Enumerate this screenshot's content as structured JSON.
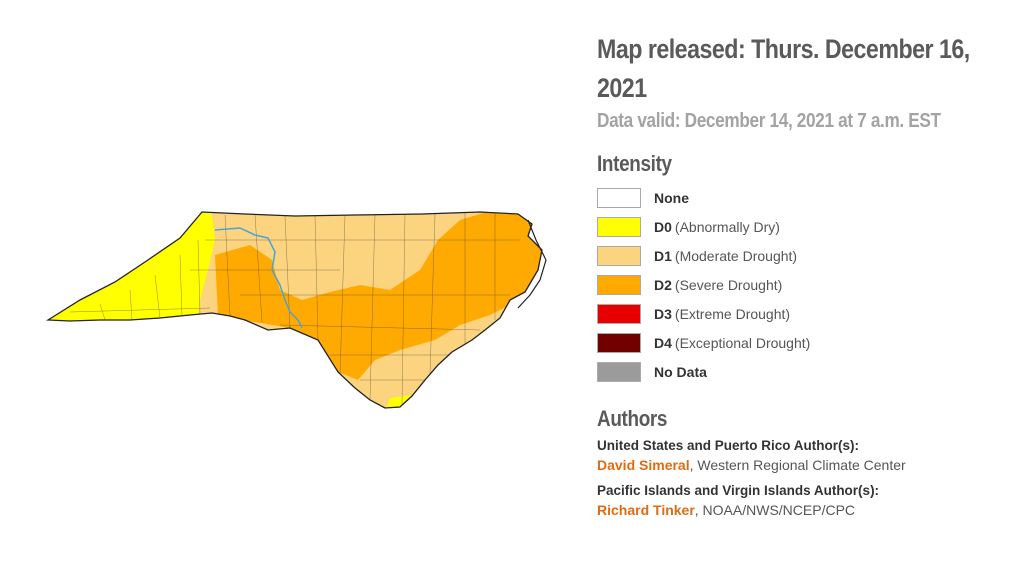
{
  "header": {
    "title": "Map released: Thurs. December 16, 2021",
    "valid": "Data valid: December 14, 2021 at 7 a.m. EST"
  },
  "legend": {
    "title": "Intensity",
    "items": [
      {
        "code": "None",
        "desc": "",
        "color": "#ffffff"
      },
      {
        "code": "D0",
        "desc": "(Abnormally Dry)",
        "color": "#ffff00"
      },
      {
        "code": "D1",
        "desc": "(Moderate Drought)",
        "color": "#fcd37f"
      },
      {
        "code": "D2",
        "desc": "(Severe Drought)",
        "color": "#ffaa00"
      },
      {
        "code": "D3",
        "desc": "(Extreme Drought)",
        "color": "#e60000"
      },
      {
        "code": "D4",
        "desc": "(Exceptional Drought)",
        "color": "#730000"
      },
      {
        "code": "No Data",
        "desc": "",
        "color": "#9b9b9b"
      }
    ]
  },
  "authors": {
    "title": "Authors",
    "groups": [
      {
        "label": "United States and Puerto Rico Author(s):",
        "name": "David Simeral",
        "org": ", Western Regional Climate Center"
      },
      {
        "label": "Pacific Islands and Virgin Islands Author(s):",
        "name": "Richard Tinker",
        "org": ", NOAA/NWS/NCEP/CPC"
      }
    ]
  },
  "map": {
    "region": "North Carolina",
    "colors": {
      "d0": "#ffff00",
      "d1": "#fcd37f",
      "d2": "#ffaa00",
      "border": "#222222",
      "river": "#4aa3d8"
    }
  }
}
